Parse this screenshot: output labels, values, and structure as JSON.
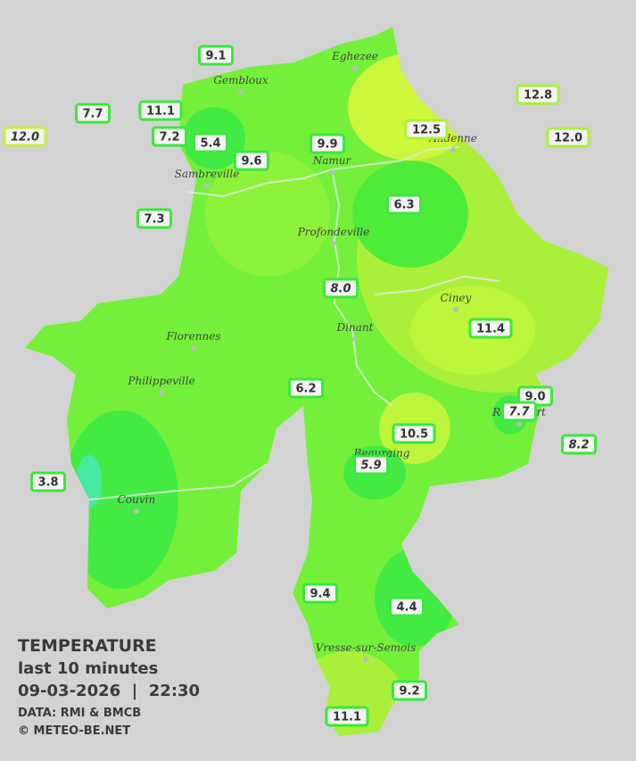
{
  "towns": [
    "Eghezee",
    "Gembloux",
    "Andenne",
    "Namur",
    "Sambreville",
    "Profondeville",
    "Ciney",
    "Dinant",
    "Florennes",
    "Philippeville",
    "Rochefort",
    "Beauraing",
    "Couvin",
    "Vresse-sur-Semois"
  ],
  "stations": [
    {
      "label": "9.1",
      "color": "#3ae83a"
    },
    {
      "label": "7.7",
      "color": "#3ae83a"
    },
    {
      "label": "11.1",
      "color": "#3ae83a"
    },
    {
      "label": "12.0",
      "color": "#c8f03a",
      "italic": true
    },
    {
      "label": "7.2",
      "color": "#3ae83a"
    },
    {
      "label": "5.4",
      "color": "#3ae83a"
    },
    {
      "label": "9.9",
      "color": "#3ae83a"
    },
    {
      "label": "9.6",
      "color": "#3ae83a"
    },
    {
      "label": "12.5",
      "color": "#aaf03a"
    },
    {
      "label": "12.8",
      "color": "#aaf03a"
    },
    {
      "label": "12.0",
      "color": "#aaf03a"
    },
    {
      "label": "7.3",
      "color": "#3ae83a"
    },
    {
      "label": "6.3",
      "color": "#3ae83a"
    },
    {
      "label": "8.0",
      "color": "#3ae83a",
      "italic": true
    },
    {
      "label": "11.4",
      "color": "#3ae83a"
    },
    {
      "label": "6.2",
      "color": "#3ae83a"
    },
    {
      "label": "9.0",
      "color": "#3ae83a"
    },
    {
      "label": "7.7",
      "color": "#3ae83a",
      "italic": true
    },
    {
      "label": "10.5",
      "color": "#3ae83a"
    },
    {
      "label": "8.2",
      "color": "#3ae83a",
      "italic": true
    },
    {
      "label": "5.9",
      "color": "#3ae83a",
      "italic": true
    },
    {
      "label": "3.8",
      "color": "#3ae83a"
    },
    {
      "label": "9.4",
      "color": "#3ae83a"
    },
    {
      "label": "4.4",
      "color": "#3ae83a"
    },
    {
      "label": "9.2",
      "color": "#3ae83a"
    },
    {
      "label": "11.1",
      "color": "#3ae83a"
    }
  ],
  "legend": {
    "title": "TEMPERATURE",
    "subtitle": "last 10 minutes",
    "datetime": "09-03-2026  |  22:30",
    "source": "DATA: RMI & BMCB",
    "copyright": "© METEO-BE.NET"
  }
}
